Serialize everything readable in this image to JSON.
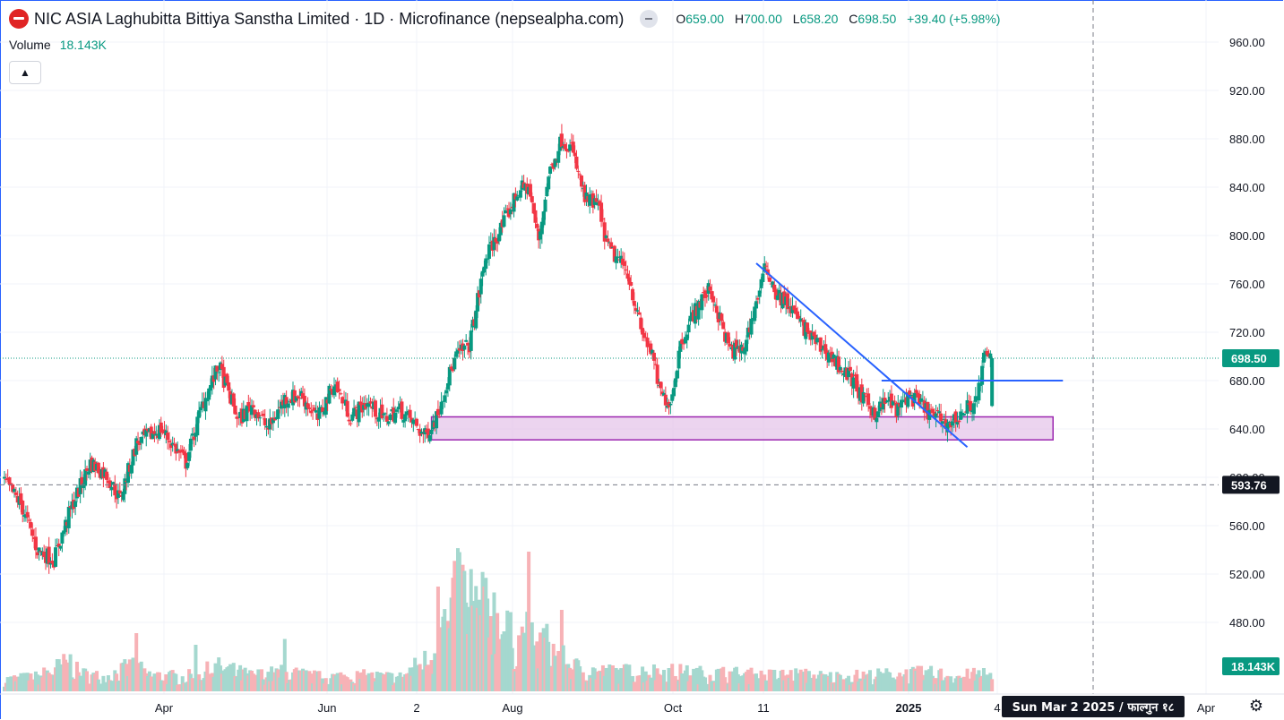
{
  "header": {
    "title": "NIC ASIA Laghubitta Bittiya Sanstha Limited · 1D · Microfinance (nepsealpha.com)",
    "ohlc": {
      "o_label": "O",
      "o": "659.00",
      "h_label": "H",
      "h": "700.00",
      "l_label": "L",
      "l": "658.20",
      "c_label": "C",
      "c": "698.50",
      "change": "+39.40 (+5.98%)"
    },
    "volume_label": "Volume",
    "volume_value": "18.143K",
    "collapse_icon": "chevron-up-icon"
  },
  "colors": {
    "up": "#089981",
    "down": "#f23645",
    "vol_up": "#a5d8cf",
    "vol_down": "#f7b2b6",
    "zone_fill": "#e6c6ea",
    "zone_stroke": "#9c27b0",
    "trend": "#2962ff",
    "grid": "#f0f3fa"
  },
  "price_axis": {
    "ticks": [
      "960.00",
      "920.00",
      "880.00",
      "840.00",
      "800.00",
      "760.00",
      "720.00",
      "680.00",
      "640.00",
      "600.00",
      "560.00",
      "520.00",
      "480.00"
    ],
    "last_price_label": "698.50",
    "crosshair_label": "593.76",
    "volume_label": "18.143K"
  },
  "time_axis": {
    "ticks": [
      "Apr",
      "Jun",
      "2",
      "Aug",
      "Oct",
      "11",
      "2025",
      "4",
      "Apr"
    ],
    "crosshair_label": "Sun Mar 2 2025 / फाल्गुन १८"
  },
  "settings_icon": "gear-icon",
  "chart_data": {
    "type": "candlestick",
    "symbol": "NIC ASIA Laghubitta Bittiya Sanstha Limited",
    "interval": "1D",
    "ylim": [
      470,
      975
    ],
    "last": {
      "open": 659.0,
      "high": 700.0,
      "low": 658.2,
      "close": 698.5,
      "volume": "18.143K"
    },
    "close_path": [
      [
        0,
        596
      ],
      [
        10,
        578
      ],
      [
        20,
        540
      ],
      [
        30,
        532
      ],
      [
        40,
        573
      ],
      [
        52,
        612
      ],
      [
        62,
        602
      ],
      [
        70,
        582
      ],
      [
        80,
        628
      ],
      [
        95,
        640
      ],
      [
        110,
        612
      ],
      [
        120,
        660
      ],
      [
        130,
        692
      ],
      [
        142,
        647
      ],
      [
        150,
        660
      ],
      [
        160,
        640
      ],
      [
        170,
        665
      ],
      [
        180,
        668
      ],
      [
        190,
        648
      ],
      [
        200,
        678
      ],
      [
        210,
        650
      ],
      [
        220,
        662
      ],
      [
        230,
        648
      ],
      [
        240,
        656
      ],
      [
        248,
        645
      ],
      [
        255,
        634
      ],
      [
        262,
        650
      ],
      [
        268,
        678
      ],
      [
        274,
        700
      ],
      [
        282,
        710
      ],
      [
        292,
        782
      ],
      [
        302,
        808
      ],
      [
        312,
        838
      ],
      [
        318,
        840
      ],
      [
        324,
        795
      ],
      [
        330,
        850
      ],
      [
        338,
        880
      ],
      [
        344,
        872
      ],
      [
        352,
        830
      ],
      [
        360,
        825
      ],
      [
        366,
        790
      ],
      [
        372,
        780
      ],
      [
        378,
        770
      ],
      [
        386,
        722
      ],
      [
        392,
        705
      ],
      [
        398,
        668
      ],
      [
        404,
        662
      ],
      [
        410,
        710
      ],
      [
        416,
        730
      ],
      [
        422,
        745
      ],
      [
        428,
        756
      ],
      [
        434,
        730
      ],
      [
        440,
        705
      ],
      [
        448,
        705
      ],
      [
        454,
        735
      ],
      [
        462,
        775
      ],
      [
        468,
        752
      ],
      [
        476,
        742
      ],
      [
        484,
        725
      ],
      [
        492,
        712
      ],
      [
        500,
        702
      ],
      [
        508,
        690
      ],
      [
        516,
        678
      ],
      [
        520,
        665
      ],
      [
        528,
        654
      ],
      [
        536,
        664
      ],
      [
        542,
        655
      ],
      [
        548,
        668
      ],
      [
        556,
        660
      ],
      [
        562,
        652
      ],
      [
        568,
        648
      ],
      [
        574,
        644
      ],
      [
        580,
        652
      ],
      [
        586,
        660
      ],
      [
        590,
        664
      ],
      [
        594,
        698.5
      ]
    ],
    "volume_path": [
      [
        0,
        1
      ],
      [
        20,
        1.2
      ],
      [
        40,
        2.5
      ],
      [
        45,
        1.5
      ],
      [
        60,
        1.2
      ],
      [
        80,
        2.2
      ],
      [
        85,
        1.4
      ],
      [
        110,
        1.2
      ],
      [
        130,
        2.0
      ],
      [
        150,
        1.3
      ],
      [
        170,
        1.6
      ],
      [
        190,
        1.2
      ],
      [
        210,
        1.3
      ],
      [
        240,
        1.2
      ],
      [
        260,
        3
      ],
      [
        264,
        6.5
      ],
      [
        270,
        5
      ],
      [
        276,
        10
      ],
      [
        282,
        6
      ],
      [
        292,
        8
      ],
      [
        300,
        6
      ],
      [
        310,
        4
      ],
      [
        318,
        5
      ],
      [
        322,
        3
      ],
      [
        326,
        4.5
      ],
      [
        340,
        2.5
      ],
      [
        350,
        1.8
      ],
      [
        370,
        1.6
      ],
      [
        400,
        1.7
      ],
      [
        420,
        1.5
      ],
      [
        440,
        1.5
      ],
      [
        460,
        1.3
      ],
      [
        480,
        1.4
      ],
      [
        500,
        1.2
      ],
      [
        520,
        1.3
      ],
      [
        540,
        1.4
      ],
      [
        560,
        1.5
      ],
      [
        580,
        1.3
      ],
      [
        594,
        1.4
      ]
    ],
    "volume_spikes": [
      [
        80,
        5
      ],
      [
        116,
        4
      ],
      [
        170,
        4.5
      ],
      [
        263,
        9
      ],
      [
        283,
        10.5
      ],
      [
        291,
        9
      ],
      [
        318,
        12
      ],
      [
        338,
        7
      ],
      [
        454,
        1.5
      ],
      [
        594,
        2
      ]
    ],
    "support_zone": {
      "x_start": 259,
      "x_end": 636,
      "y_low": 631,
      "y_high": 650
    },
    "trendline": {
      "from": [
        456,
        777
      ],
      "to": [
        584,
        625
      ]
    },
    "resistance_line": {
      "x_start": 532,
      "x_end": 642,
      "y": 680
    }
  }
}
